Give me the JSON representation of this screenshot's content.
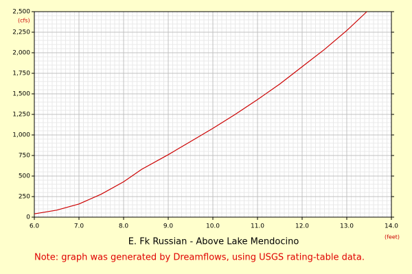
{
  "chart_data": {
    "type": "line",
    "title": "E. Fk Russian - Above Lake Mendocino",
    "note": "Note: graph was generated by Dreamflows, using USGS rating-table data.",
    "x_label": "(feet)",
    "y_label": "(cfs)",
    "x": [
      6.0,
      6.5,
      7.0,
      7.5,
      8.0,
      8.4,
      9.0,
      9.5,
      10.0,
      10.5,
      11.0,
      11.5,
      12.0,
      12.5,
      13.0,
      13.45
    ],
    "series": [
      {
        "color": "#cc0000",
        "values": [
          40,
          85,
          160,
          280,
          430,
          580,
          760,
          920,
          1080,
          1250,
          1430,
          1620,
          1830,
          2040,
          2270,
          2500
        ]
      }
    ],
    "xlim": [
      6,
      14
    ],
    "xticks": [
      {
        "value": 6,
        "label": "6.0"
      },
      {
        "value": 7,
        "label": "7.0"
      },
      {
        "value": 8,
        "label": "8.0"
      },
      {
        "value": 9,
        "label": "9.0"
      },
      {
        "value": 10,
        "label": "10.0"
      },
      {
        "value": 11,
        "label": "11.0"
      },
      {
        "value": 12,
        "label": "12.0"
      },
      {
        "value": 13,
        "label": "13.0"
      },
      {
        "value": 14,
        "label": "14.0"
      }
    ],
    "ylim": [
      0,
      2500
    ],
    "yticks": [
      0,
      250,
      500,
      750,
      {
        "value": 1000,
        "label": "1,000"
      },
      {
        "value": 1250,
        "label": "1,250"
      },
      {
        "value": 1500,
        "label": "1,500"
      },
      {
        "value": 1750,
        "label": "1,750"
      },
      {
        "value": 2000,
        "label": "2,000"
      },
      {
        "value": 2250,
        "label": "2,250"
      },
      {
        "value": 2500,
        "label": "2,500"
      }
    ],
    "grid": true
  }
}
